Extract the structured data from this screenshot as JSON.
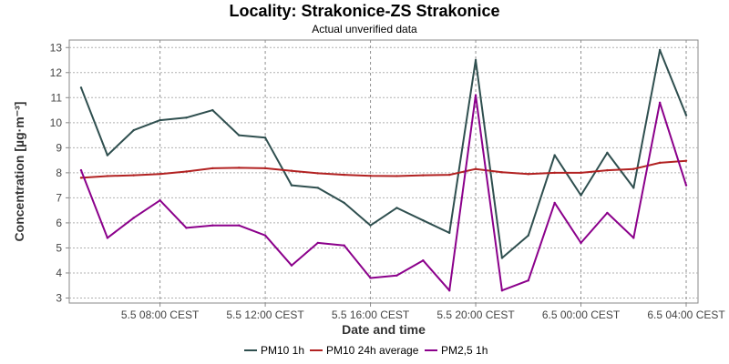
{
  "chart_data": {
    "type": "line",
    "title": "Locality: Strakonice-ZS Strakonice",
    "subtitle": "Actual unverified data",
    "xlabel": "Date and time",
    "ylabel": "Concentration [µg·m⁻³]",
    "x_ticks": [
      {
        "x": 3,
        "label": "5.5 08:00 CEST"
      },
      {
        "x": 7,
        "label": "5.5 12:00 CEST"
      },
      {
        "x": 11,
        "label": "5.5 16:00 CEST"
      },
      {
        "x": 15,
        "label": "5.5 20:00 CEST"
      },
      {
        "x": 19,
        "label": "6.5 00:00 CEST"
      },
      {
        "x": 23,
        "label": "6.5 04:00 CEST"
      }
    ],
    "y_ticks": [
      3,
      4,
      5,
      6,
      7,
      8,
      9,
      10,
      11,
      12,
      13
    ],
    "ylim": [
      2.8,
      13.3
    ],
    "xlim": [
      -0.45,
      23.45
    ],
    "grid": true,
    "legend_position": "bottom",
    "x": [
      0,
      1,
      2,
      3,
      4,
      5,
      6,
      7,
      8,
      9,
      10,
      11,
      12,
      13,
      14,
      15,
      16,
      17,
      18,
      19,
      20,
      21,
      22,
      23
    ],
    "series": [
      {
        "name": "PM10 1h",
        "color": "#2f4f4f",
        "values": [
          11.4,
          8.7,
          9.7,
          10.1,
          10.2,
          10.5,
          9.5,
          9.4,
          7.5,
          7.4,
          6.8,
          5.9,
          6.6,
          6.1,
          5.6,
          12.5,
          4.6,
          5.5,
          8.7,
          7.1,
          8.8,
          7.4,
          12.9,
          10.3
        ]
      },
      {
        "name": "PM10 24h average",
        "color": "#b22222",
        "values": [
          7.8,
          7.87,
          7.9,
          7.95,
          8.05,
          8.18,
          8.2,
          8.18,
          8.08,
          7.98,
          7.92,
          7.88,
          7.87,
          7.9,
          7.92,
          8.15,
          8.02,
          7.95,
          8.0,
          8.0,
          8.1,
          8.15,
          8.4,
          8.48
        ]
      },
      {
        "name": "PM2,5 1h",
        "color": "#8b008b",
        "values": [
          8.1,
          5.4,
          6.2,
          6.9,
          5.8,
          5.9,
          5.9,
          5.5,
          4.3,
          5.2,
          5.1,
          3.8,
          3.9,
          4.5,
          3.3,
          11.1,
          3.3,
          3.7,
          6.8,
          5.2,
          6.4,
          5.4,
          10.8,
          7.5
        ]
      }
    ]
  }
}
